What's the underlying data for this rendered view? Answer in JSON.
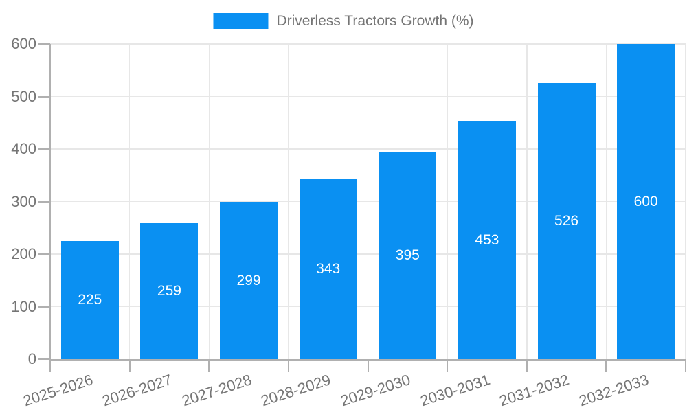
{
  "legend": {
    "series_label": "Driverless Tractors Growth (%)"
  },
  "chart_data": {
    "type": "bar",
    "title": "",
    "xlabel": "",
    "ylabel": "",
    "series_name": "Driverless Tractors Growth (%)",
    "categories": [
      "2025-2026",
      "2026-2027",
      "2027-2028",
      "2028-2029",
      "2029-2030",
      "2030-2031",
      "2031-2032",
      "2032-2033"
    ],
    "values": [
      225,
      259,
      299,
      343,
      395,
      453,
      526,
      600
    ],
    "ylim": [
      0,
      600
    ],
    "yticks": [
      0,
      100,
      200,
      300,
      400,
      500,
      600
    ],
    "grid": true,
    "legend_position": "top-center",
    "x_label_rotation_deg": -18,
    "colors": {
      "bar": "#0a90f2",
      "bar_value_label": "#ffffff",
      "grid_line": "#e7e7e7",
      "axis_line": "#b0b0b0",
      "tick_label": "#757575",
      "legend_text": "#757575",
      "background": "#ffffff"
    }
  }
}
